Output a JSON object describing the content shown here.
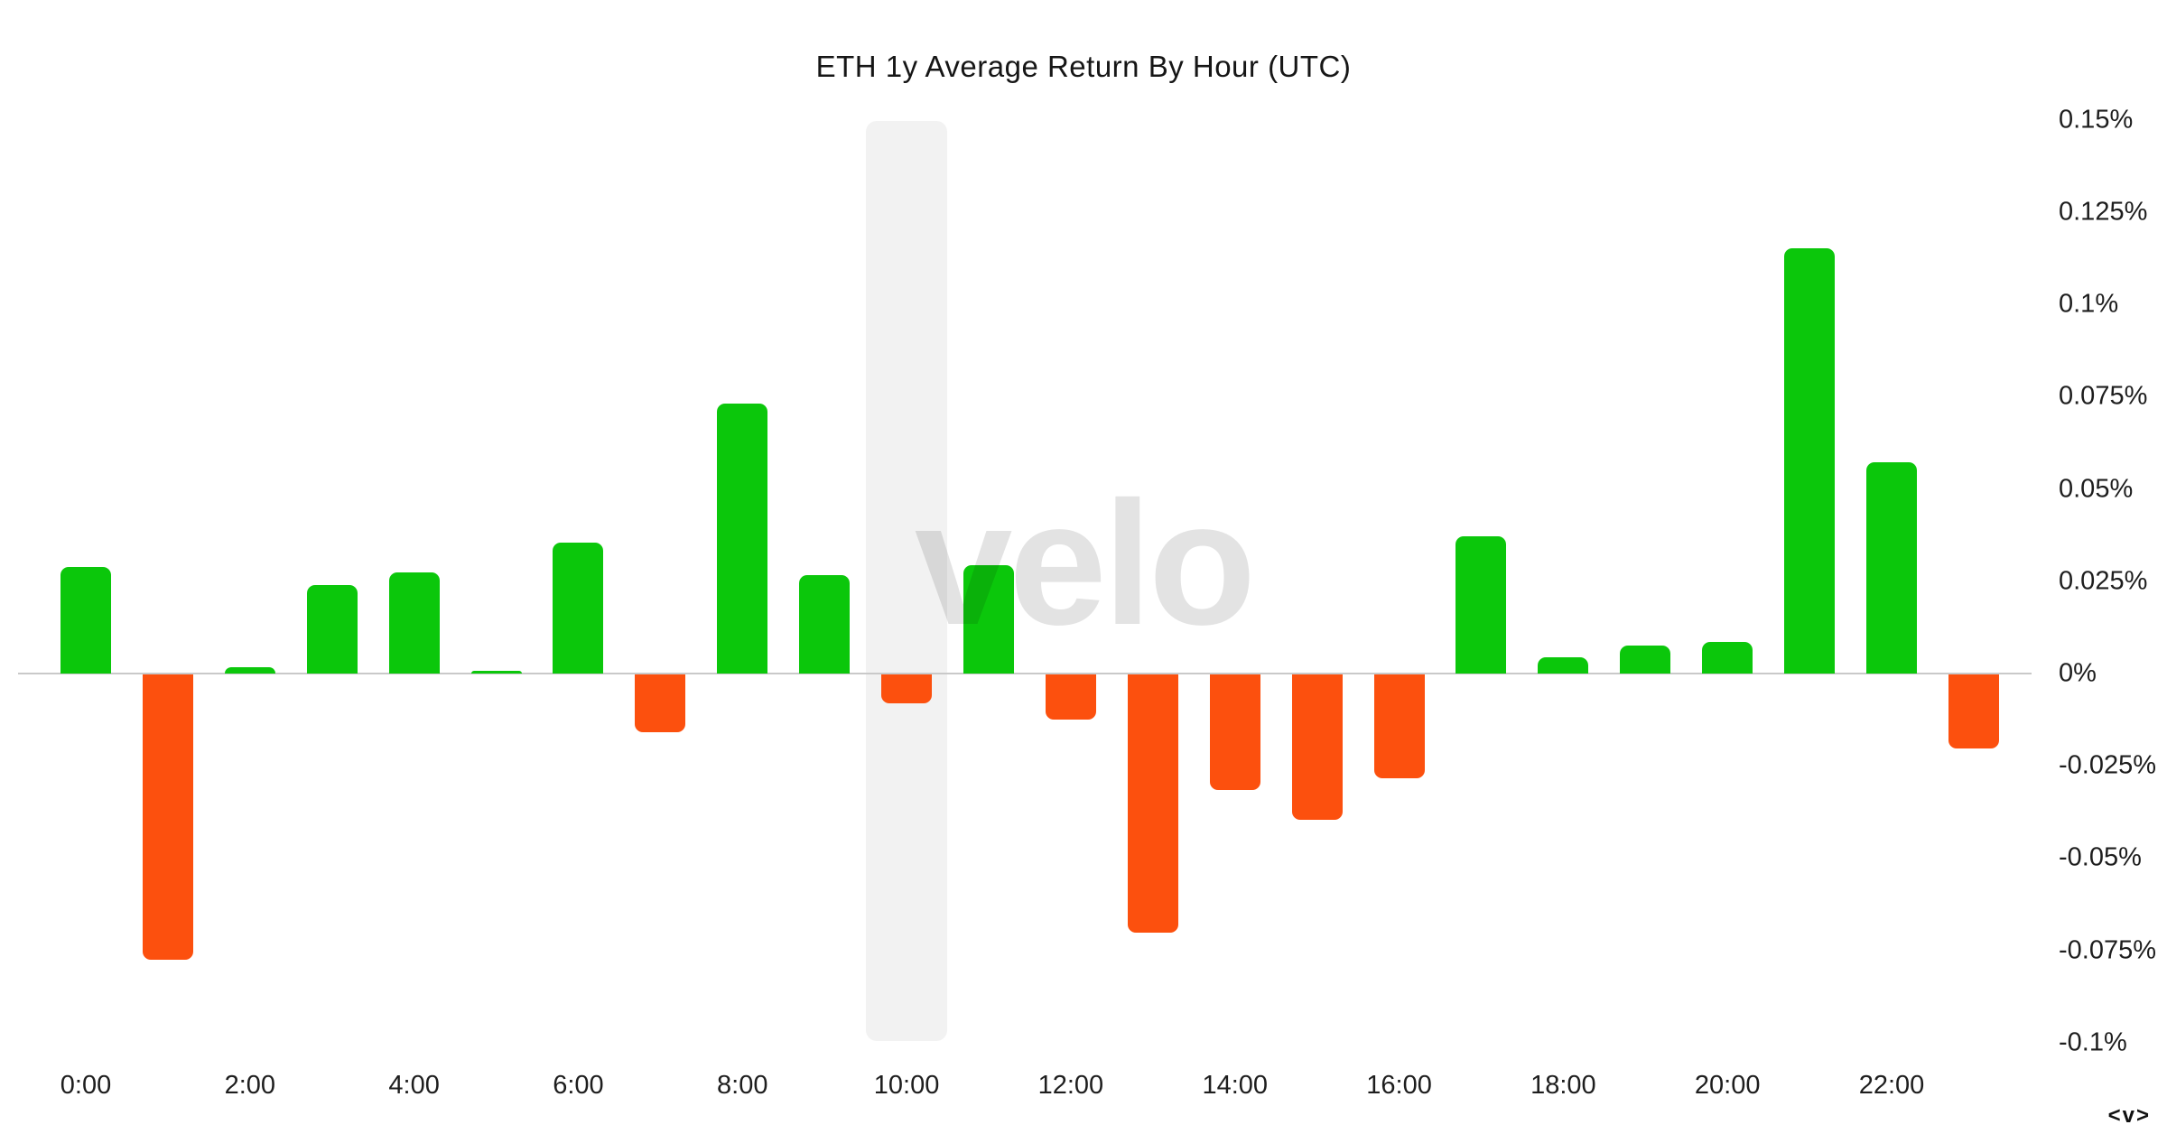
{
  "header": {
    "title": "ETH 1y Average Return By Hour (UTC)"
  },
  "watermark": {
    "text": "velo"
  },
  "footer": {
    "logo_mark": "<v>"
  },
  "chart_data": {
    "type": "bar",
    "title": "ETH 1y Average Return By Hour (UTC)",
    "unit": "%",
    "y_axis_position": "right",
    "grid": "off",
    "legend": "none",
    "ylim": [
      -0.1,
      0.15
    ],
    "categories": [
      "0:00",
      "1:00",
      "2:00",
      "3:00",
      "4:00",
      "5:00",
      "6:00",
      "7:00",
      "8:00",
      "9:00",
      "10:00",
      "11:00",
      "12:00",
      "13:00",
      "14:00",
      "15:00",
      "16:00",
      "17:00",
      "18:00",
      "19:00",
      "20:00",
      "21:00",
      "22:00",
      "23:00"
    ],
    "values": [
      0.0289,
      -0.0773,
      0.0017,
      0.024,
      0.0274,
      0.0007,
      0.0355,
      -0.0157,
      0.0732,
      0.0267,
      -0.0078,
      0.0294,
      -0.0122,
      -0.07,
      -0.0313,
      -0.0394,
      -0.0281,
      0.0372,
      0.0044,
      0.0076,
      0.0086,
      0.1152,
      0.0572,
      -0.0201
    ],
    "x_tick_labels": [
      "0:00",
      "2:00",
      "4:00",
      "6:00",
      "8:00",
      "10:00",
      "12:00",
      "14:00",
      "16:00",
      "18:00",
      "20:00",
      "22:00"
    ],
    "y_ticks": [
      {
        "label": "0.15%",
        "value": 0.15
      },
      {
        "label": "0.125%",
        "value": 0.125
      },
      {
        "label": "0.1%",
        "value": 0.1
      },
      {
        "label": "0.075%",
        "value": 0.075
      },
      {
        "label": "0.05%",
        "value": 0.05
      },
      {
        "label": "0.025%",
        "value": 0.025
      },
      {
        "label": "0%",
        "value": 0
      },
      {
        "label": "-0.025%",
        "value": -0.025
      },
      {
        "label": "-0.05%",
        "value": -0.05
      },
      {
        "label": "-0.075%",
        "value": -0.075
      },
      {
        "label": "-0.1%",
        "value": -0.1
      }
    ],
    "highlighted_category": "10:00",
    "colors": {
      "positive": "#0bc70b",
      "negative": "#fc500e",
      "highlight_band": "#f2f2f2",
      "zero_line": "#c9c9c9"
    }
  }
}
